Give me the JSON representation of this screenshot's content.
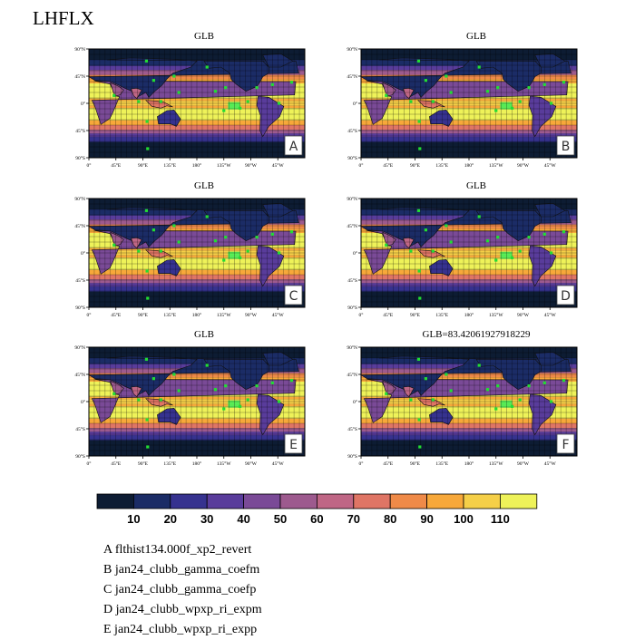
{
  "figure": {
    "title": "LHFLX"
  },
  "panels": [
    {
      "id": "A",
      "title": "GLB"
    },
    {
      "id": "B",
      "title": "GLB"
    },
    {
      "id": "C",
      "title": "GLB"
    },
    {
      "id": "D",
      "title": "GLB"
    },
    {
      "id": "E",
      "title": "GLB"
    },
    {
      "id": "F",
      "title": "GLB=83.42061927918229"
    }
  ],
  "axes": {
    "lat_ticks": [
      "90°N",
      "45°N",
      "0°",
      "45°S",
      "90°S"
    ],
    "lon_ticks": [
      "0°",
      "45°E",
      "90°E",
      "135°E",
      "180°",
      "135°W",
      "90°W",
      "45°W"
    ]
  },
  "colorbar": {
    "levels": [
      "10",
      "20",
      "30",
      "40",
      "50",
      "60",
      "70",
      "80",
      "90",
      "100",
      "110"
    ],
    "colors": [
      "#0d1c33",
      "#1b2c66",
      "#36328f",
      "#593c9b",
      "#7a4a97",
      "#9d5a8e",
      "#bf6685",
      "#df7565",
      "#ef8a48",
      "#f7a83a",
      "#f5cf48",
      "#eef259"
    ]
  },
  "legend": [
    "A  flthist134.000f_xp2_revert",
    "B  jan24_clubb_gamma_coefm",
    "C  jan24_clubb_gamma_coefp",
    "D  jan24_clubb_wpxp_ri_expm",
    "E  jan24_clubb_wpxp_ri_expp"
  ],
  "chart_data": {
    "type": "heatmap",
    "variable": "LHFLX",
    "panels": [
      "A",
      "B",
      "C",
      "D",
      "E",
      "F"
    ],
    "global_mean_F": 83.42061927918229,
    "contour_levels": [
      10,
      20,
      30,
      40,
      50,
      60,
      70,
      80,
      90,
      100,
      110
    ],
    "lat_range": [
      -90,
      90
    ],
    "lon_range": [
      0,
      360
    ]
  }
}
